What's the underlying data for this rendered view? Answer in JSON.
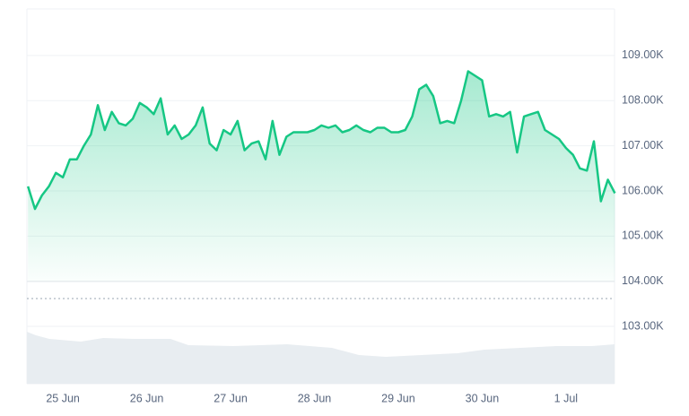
{
  "chart_data": {
    "type": "area",
    "color": "#16c784",
    "grid": true,
    "x": [
      -10,
      -8,
      -6,
      -4,
      -2,
      0,
      2,
      4,
      6,
      8,
      10,
      12,
      14,
      16,
      18,
      20,
      22,
      24,
      26,
      28,
      30,
      32,
      34,
      36,
      38,
      40,
      42,
      44,
      46,
      48,
      50,
      52,
      54,
      56,
      58,
      60,
      62,
      64,
      66,
      68,
      70,
      72,
      74,
      76,
      78,
      80,
      82,
      84,
      86,
      88,
      90,
      92,
      94,
      96,
      98,
      100,
      102,
      104,
      106,
      108,
      110,
      112,
      114,
      116,
      118,
      120,
      122,
      124,
      126,
      128,
      130,
      132,
      134,
      136,
      138,
      140,
      142,
      144,
      146,
      148,
      150,
      152,
      154,
      156,
      158
    ],
    "values": [
      106100,
      105600,
      105900,
      106100,
      106400,
      106300,
      106700,
      106700,
      107000,
      107250,
      107900,
      107350,
      107750,
      107500,
      107450,
      107600,
      107950,
      107850,
      107700,
      108050,
      107250,
      107450,
      107150,
      107250,
      107450,
      107850,
      107050,
      106900,
      107350,
      107250,
      107550,
      106900,
      107050,
      107100,
      106700,
      107550,
      106800,
      107200,
      107300,
      107300,
      107300,
      107350,
      107450,
      107400,
      107450,
      107300,
      107350,
      107450,
      107350,
      107300,
      107400,
      107400,
      107300,
      107300,
      107350,
      107650,
      108250,
      108350,
      108100,
      107500,
      107550,
      107500,
      108000,
      108650,
      108550,
      108450,
      107650,
      107700,
      107650,
      107750,
      106850,
      107650,
      107700,
      107750,
      107350,
      107250,
      107150,
      106950,
      106800,
      106500,
      106450,
      107100,
      105770,
      106250,
      105950
    ],
    "xlim": [
      -10.3,
      157.9
    ],
    "xticks": [
      {
        "value": 0,
        "label": "25 Jun"
      },
      {
        "value": 24,
        "label": "26 Jun"
      },
      {
        "value": 48,
        "label": "27 Jun"
      },
      {
        "value": 72,
        "label": "28 Jun"
      },
      {
        "value": 96,
        "label": "29 Jun"
      },
      {
        "value": 120,
        "label": "30 Jun"
      },
      {
        "value": 144,
        "label": "1 Jul"
      }
    ],
    "ylim": [
      101730,
      110030
    ],
    "yticks": [
      {
        "value": 103000,
        "label": "103.00K"
      },
      {
        "value": 104000,
        "label": "104.00K"
      },
      {
        "value": 105000,
        "label": "105.00K"
      },
      {
        "value": 106000,
        "label": "106.00K"
      },
      {
        "value": 107000,
        "label": "107.00K"
      },
      {
        "value": 108000,
        "label": "108.00K"
      },
      {
        "value": 109000,
        "label": "109.00K"
      }
    ]
  }
}
